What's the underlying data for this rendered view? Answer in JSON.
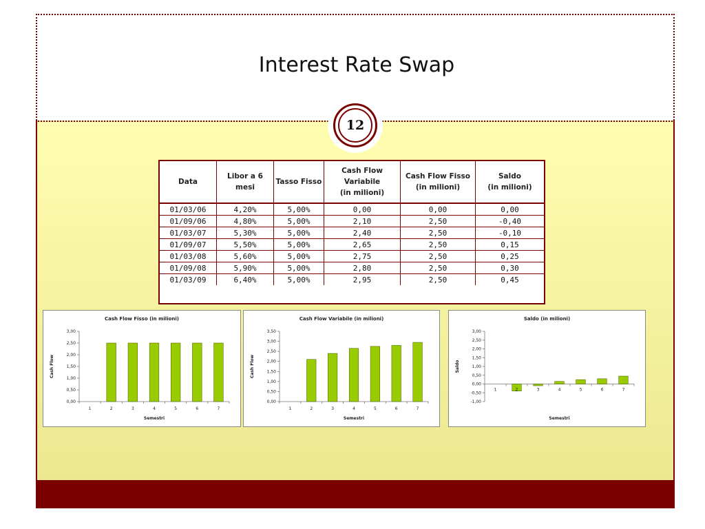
{
  "slide": {
    "title": "Interest Rate Swap",
    "slide_number": "12",
    "colors": {
      "accent": "#7a0000",
      "bar": "#99cc00",
      "background_top": "#fffeb0",
      "background_bottom": "#ece890"
    }
  },
  "table": {
    "headers": [
      "Data",
      "Libor a 6 mesi",
      "Tasso Fisso",
      "Cash Flow Variabile\n(in milioni)",
      "Cash Flow Fisso\n(in milioni)",
      "Saldo\n(in milioni)"
    ],
    "rows": [
      [
        "01/03/06",
        "4,20%",
        "5,00%",
        "0,00",
        "0,00",
        "0,00"
      ],
      [
        "01/09/06",
        "4,80%",
        "5,00%",
        "2,10",
        "2,50",
        "-0,40"
      ],
      [
        "01/03/07",
        "5,30%",
        "5,00%",
        "2,40",
        "2,50",
        "-0,10"
      ],
      [
        "01/09/07",
        "5,50%",
        "5,00%",
        "2,65",
        "2,50",
        "0,15"
      ],
      [
        "01/03/08",
        "5,60%",
        "5,00%",
        "2,75",
        "2,50",
        "0,25"
      ],
      [
        "01/09/08",
        "5,90%",
        "5,00%",
        "2,80",
        "2,50",
        "0,30"
      ],
      [
        "01/03/09",
        "6,40%",
        "5,00%",
        "2,95",
        "2,50",
        "0,45"
      ]
    ]
  },
  "chart_data": [
    {
      "type": "bar",
      "title": "Cash Flow Fisso (in milioni)",
      "xlabel": "Semestri",
      "ylabel": "Cash Flow",
      "categories": [
        "1",
        "2",
        "3",
        "4",
        "5",
        "6",
        "7"
      ],
      "values": [
        0,
        2.5,
        2.5,
        2.5,
        2.5,
        2.5,
        2.5
      ],
      "ylim": [
        0,
        3
      ],
      "yticks": [
        "0,00",
        "0,50",
        "1,00",
        "1,50",
        "2,00",
        "2,50",
        "3,00"
      ],
      "legend": "none"
    },
    {
      "type": "bar",
      "title": "Cash Flow Variabile (in milioni)",
      "xlabel": "Semestri",
      "ylabel": "Cash Flow",
      "categories": [
        "1",
        "2",
        "3",
        "4",
        "5",
        "6",
        "7"
      ],
      "values": [
        0,
        2.1,
        2.4,
        2.65,
        2.75,
        2.8,
        2.95
      ],
      "ylim": [
        0,
        3.5
      ],
      "yticks": [
        "0,00",
        "0,50",
        "1,00",
        "1,50",
        "2,00",
        "2,50",
        "3,00",
        "3,50"
      ],
      "legend": "none"
    },
    {
      "type": "bar",
      "title": "Saldo (in milioni)",
      "xlabel": "Semestri",
      "ylabel": "Saldo",
      "categories": [
        "1",
        "2",
        "3",
        "4",
        "5",
        "6",
        "7"
      ],
      "values": [
        0,
        -0.4,
        -0.1,
        0.15,
        0.25,
        0.3,
        0.45
      ],
      "ylim": [
        -1,
        3
      ],
      "yticks": [
        "-1,00",
        "-0,50",
        "0,00",
        "0,50",
        "1,00",
        "1,50",
        "2,00",
        "2,50",
        "3,00"
      ],
      "legend": "none"
    }
  ]
}
